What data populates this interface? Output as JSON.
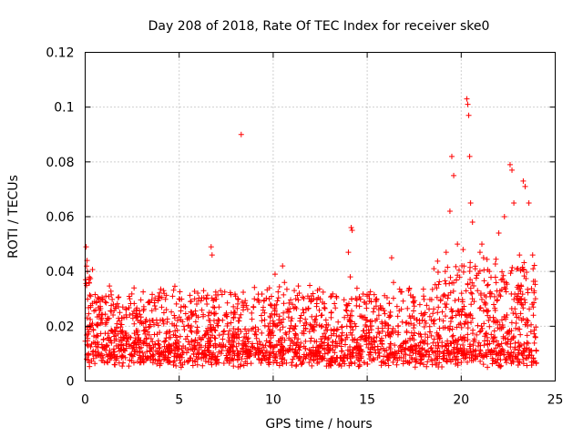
{
  "chart_data": {
    "type": "scatter",
    "title": "Day 208 of 2018, Rate Of TEC Index for receiver ske0",
    "xlabel": "GPS time / hours",
    "ylabel": "ROTI / TECUs",
    "xlim": [
      0,
      25
    ],
    "ylim": [
      0,
      0.12
    ],
    "xticks": [
      0,
      5,
      10,
      15,
      20,
      25
    ],
    "xtick_labels": [
      "0",
      "5",
      "10",
      "15",
      "20",
      "25"
    ],
    "yticks": [
      0,
      0.02,
      0.04,
      0.06,
      0.08,
      0.1,
      0.12
    ],
    "ytick_labels": [
      "0",
      "0.02",
      "0.04",
      "0.06",
      "0.08",
      "0.1",
      "0.12"
    ],
    "grid": true,
    "marker": "+",
    "color": "#ff0000",
    "series": [
      {
        "name": "ske0",
        "x": [
          0.05,
          0.1,
          0.12,
          0.2,
          0.3,
          0.5,
          0.8,
          1.1,
          1.5,
          2.0,
          2.6,
          3.4,
          3.9,
          4.2,
          5.0,
          5.6,
          6.3,
          6.7,
          6.75,
          7.2,
          8.0,
          8.3,
          9.0,
          9.8,
          10.1,
          10.5,
          10.6,
          11.2,
          12.0,
          12.5,
          13.1,
          14.0,
          14.1,
          14.15,
          14.2,
          15.0,
          15.5,
          16.3,
          16.4,
          17.2,
          18.0,
          18.7,
          19.2,
          19.4,
          19.5,
          19.6,
          19.8,
          20.1,
          20.3,
          20.35,
          20.4,
          20.45,
          20.5,
          20.6,
          21.0,
          21.1,
          21.5,
          22.0,
          22.3,
          22.6,
          22.7,
          22.8,
          23.1,
          23.3,
          23.4,
          23.6,
          23.8
        ],
        "y": [
          0.049,
          0.044,
          0.04,
          0.036,
          0.031,
          0.029,
          0.03,
          0.031,
          0.028,
          0.027,
          0.034,
          0.029,
          0.031,
          0.032,
          0.03,
          0.029,
          0.033,
          0.049,
          0.046,
          0.033,
          0.031,
          0.09,
          0.03,
          0.034,
          0.039,
          0.042,
          0.036,
          0.03,
          0.029,
          0.03,
          0.031,
          0.047,
          0.038,
          0.056,
          0.055,
          0.031,
          0.03,
          0.045,
          0.036,
          0.033,
          0.031,
          0.034,
          0.047,
          0.062,
          0.082,
          0.075,
          0.05,
          0.048,
          0.103,
          0.101,
          0.097,
          0.082,
          0.065,
          0.058,
          0.047,
          0.05,
          0.04,
          0.054,
          0.06,
          0.079,
          0.077,
          0.065,
          0.046,
          0.073,
          0.071,
          0.065,
          0.046
        ]
      }
    ],
    "dense_band": {
      "x_range": [
        0,
        24
      ],
      "y_typical": [
        0.005,
        0.03
      ]
    }
  }
}
